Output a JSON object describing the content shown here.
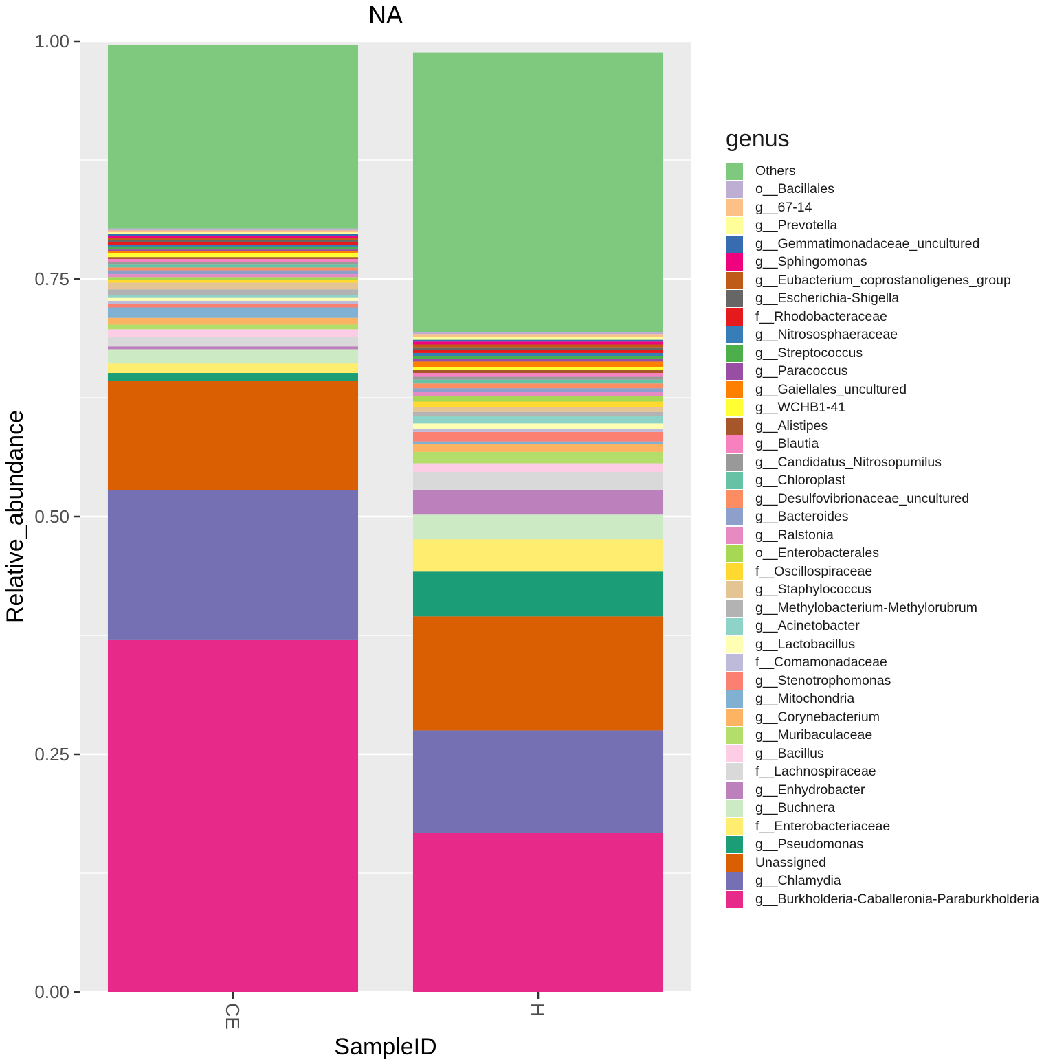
{
  "chart_data": {
    "type": "bar",
    "stacked": true,
    "title": "NA",
    "xlabel": "SampleID",
    "ylabel": "Relative_abundance",
    "ylim": [
      0,
      1
    ],
    "yticks": [
      "0.00",
      "0.25",
      "0.50",
      "0.75",
      "1.00"
    ],
    "categories": [
      "CE",
      "H"
    ],
    "legend_title": "genus",
    "legend_position": "right",
    "series": [
      {
        "name": "g__Burkholderia-Caballeronia-Paraburkholderia",
        "color": "#e7298a",
        "values": [
          0.37,
          0.167
        ]
      },
      {
        "name": "g__Chlamydia",
        "color": "#7570b3",
        "values": [
          0.158,
          0.108
        ]
      },
      {
        "name": "Unassigned",
        "color": "#d95f02",
        "values": [
          0.115,
          0.12
        ]
      },
      {
        "name": "g__Pseudomonas",
        "color": "#1b9e77",
        "values": [
          0.008,
          0.047
        ]
      },
      {
        "name": "f__Enterobacteriaceae",
        "color": "#ffed6f",
        "values": [
          0.01,
          0.034
        ]
      },
      {
        "name": "g__Buchnera",
        "color": "#ccebc5",
        "values": [
          0.015,
          0.026
        ]
      },
      {
        "name": "g__Enhydrobacter",
        "color": "#bc80bd",
        "values": [
          0.003,
          0.026
        ]
      },
      {
        "name": "f__Lachnospiraceae",
        "color": "#d9d9d9",
        "values": [
          0.01,
          0.019
        ]
      },
      {
        "name": "g__Bacillus",
        "color": "#fccde5",
        "values": [
          0.008,
          0.009
        ]
      },
      {
        "name": "g__Muribaculaceae",
        "color": "#b3de69",
        "values": [
          0.005,
          0.012
        ]
      },
      {
        "name": "g__Corynebacterium",
        "color": "#fdb462",
        "values": [
          0.007,
          0.008
        ]
      },
      {
        "name": "g__Mitochondria",
        "color": "#80b1d3",
        "values": [
          0.011,
          0.003
        ]
      },
      {
        "name": "g__Stenotrophomonas",
        "color": "#fb8072",
        "values": [
          0.004,
          0.01
        ]
      },
      {
        "name": "f__Comamonadaceae",
        "color": "#bebada",
        "values": [
          0.003,
          0.003
        ]
      },
      {
        "name": "g__Lactobacillus",
        "color": "#ffffb3",
        "values": [
          0.003,
          0.006
        ]
      },
      {
        "name": "g__Acinetobacter",
        "color": "#8dd3c7",
        "values": [
          0.003,
          0.008
        ]
      },
      {
        "name": "g__Methylobacterium-Methylorubrum",
        "color": "#b3b3b3",
        "values": [
          0.006,
          0.004
        ]
      },
      {
        "name": "g__Staphylococcus",
        "color": "#e5c494",
        "values": [
          0.007,
          0.005
        ]
      },
      {
        "name": "f__Oscillospiraceae",
        "color": "#ffd92f",
        "values": [
          0.003,
          0.006
        ]
      },
      {
        "name": "o__Enterobacterales",
        "color": "#a6d854",
        "values": [
          0.003,
          0.006
        ]
      },
      {
        "name": "g__Ralstonia",
        "color": "#e78ac3",
        "values": [
          0.003,
          0.004
        ]
      },
      {
        "name": "g__Bacteroides",
        "color": "#8da0cb",
        "values": [
          0.004,
          0.004
        ]
      },
      {
        "name": "g__Desulfovibrionaceae_uncultured",
        "color": "#fc8d62",
        "values": [
          0.003,
          0.005
        ]
      },
      {
        "name": "g__Chloroplast",
        "color": "#66c2a5",
        "values": [
          0.003,
          0.004
        ]
      },
      {
        "name": "g__Candidatus_Nitrosopumilus",
        "color": "#999999",
        "values": [
          0.003,
          0.003
        ]
      },
      {
        "name": "g__Blautia",
        "color": "#f781bf",
        "values": [
          0.003,
          0.004
        ]
      },
      {
        "name": "g__Alistipes",
        "color": "#a65628",
        "values": [
          0.002,
          0.003
        ]
      },
      {
        "name": "g__WCHB1-41",
        "color": "#ffff33",
        "values": [
          0.004,
          0.003
        ]
      },
      {
        "name": "g__Gaiellales_uncultured",
        "color": "#ff7f00",
        "values": [
          0.002,
          0.006
        ]
      },
      {
        "name": "g__Paracoccus",
        "color": "#984ea3",
        "values": [
          0.002,
          0.003
        ]
      },
      {
        "name": "g__Streptococcus",
        "color": "#4daf4a",
        "values": [
          0.003,
          0.003
        ]
      },
      {
        "name": "g__Nitrososphaeraceae",
        "color": "#377eb8",
        "values": [
          0.002,
          0.003
        ]
      },
      {
        "name": "f__Rhodobacteraceae",
        "color": "#e41a1c",
        "values": [
          0.003,
          0.003
        ]
      },
      {
        "name": "g__Escherichia-Shigella",
        "color": "#666666",
        "values": [
          0.002,
          0.003
        ]
      },
      {
        "name": "g__Eubacterium_coprostanoligenes_group",
        "color": "#bf5b17",
        "values": [
          0.002,
          0.003
        ]
      },
      {
        "name": "g__Sphingomonas",
        "color": "#f0027f",
        "values": [
          0.002,
          0.003
        ]
      },
      {
        "name": "g__Gemmatimonadaceae_uncultured",
        "color": "#386cb0",
        "values": [
          0.002,
          0.002
        ]
      },
      {
        "name": "g__Prevotella",
        "color": "#ffff99",
        "values": [
          0.002,
          0.003
        ]
      },
      {
        "name": "g__67-14",
        "color": "#fdc086",
        "values": [
          0.002,
          0.003
        ]
      },
      {
        "name": "o__Bacillales",
        "color": "#beaed4",
        "values": [
          0.002,
          0.002
        ]
      },
      {
        "name": "Others",
        "color": "#7fc97f",
        "values": [
          0.193,
          0.294
        ]
      }
    ]
  }
}
